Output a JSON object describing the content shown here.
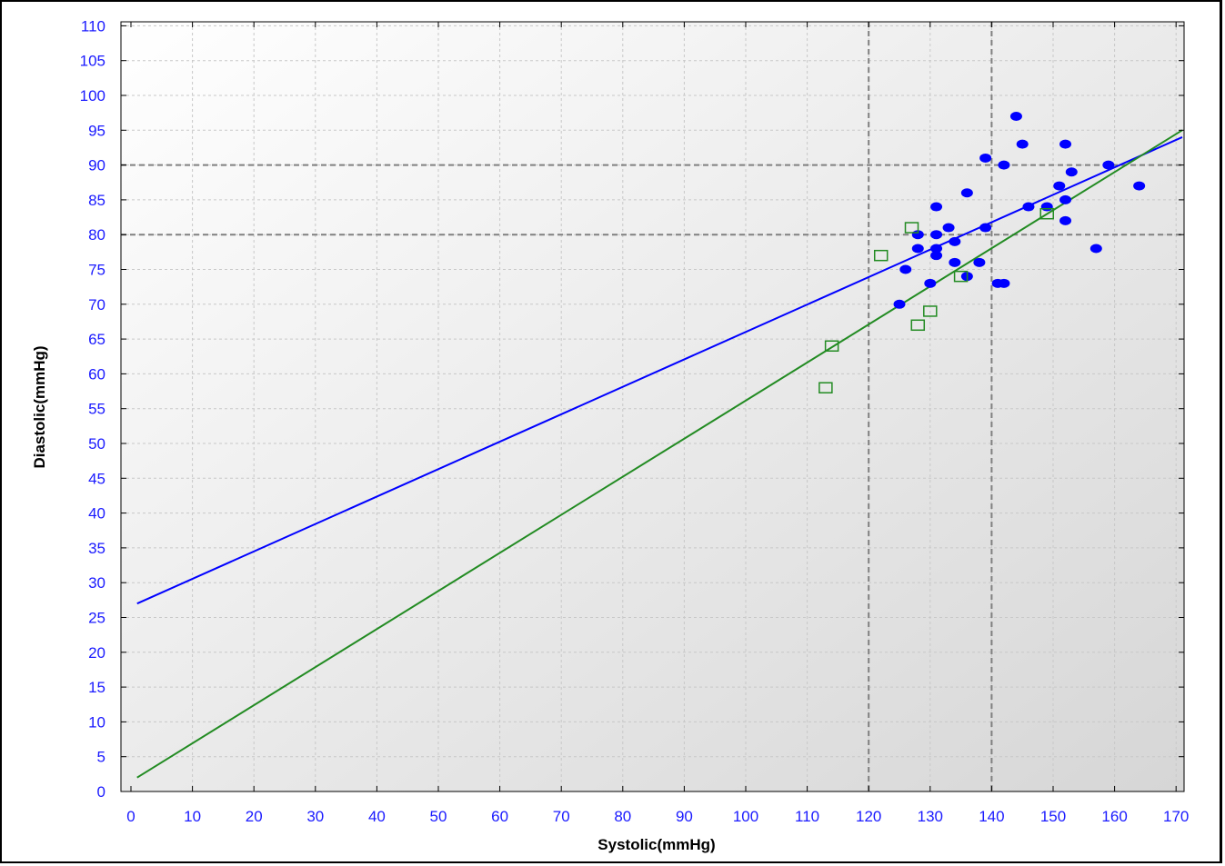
{
  "chart_data": {
    "type": "scatter",
    "title": "",
    "xlabel": "Systolic(mmHg)",
    "ylabel": "Diastolic(mmHg)",
    "xlim": [
      0,
      171
    ],
    "ylim": [
      0,
      110
    ],
    "x_ticks": [
      0,
      10,
      20,
      30,
      40,
      50,
      60,
      70,
      80,
      90,
      100,
      110,
      120,
      130,
      140,
      150,
      160,
      170
    ],
    "y_ticks": [
      0,
      5,
      10,
      15,
      20,
      25,
      30,
      35,
      40,
      45,
      50,
      55,
      60,
      65,
      70,
      75,
      80,
      85,
      90,
      95,
      100,
      105,
      110
    ],
    "grid": true,
    "reference_lines": {
      "x": [
        120,
        140
      ],
      "y": [
        80,
        90
      ],
      "color": "#808080"
    },
    "series": [
      {
        "marker": "filled-circle",
        "color": "#0000ff",
        "points": [
          [
            144,
            97
          ],
          [
            145,
            93
          ],
          [
            152,
            93
          ],
          [
            139,
            91
          ],
          [
            142,
            90
          ],
          [
            159,
            90
          ],
          [
            153,
            89
          ],
          [
            151,
            87
          ],
          [
            164,
            87
          ],
          [
            136,
            86
          ],
          [
            152,
            85
          ],
          [
            131,
            84
          ],
          [
            146,
            84
          ],
          [
            149,
            84
          ],
          [
            133,
            81
          ],
          [
            139,
            81
          ],
          [
            152,
            82
          ],
          [
            128,
            80
          ],
          [
            131,
            80
          ],
          [
            134,
            79
          ],
          [
            128,
            78
          ],
          [
            131,
            78
          ],
          [
            157,
            78
          ],
          [
            131,
            77
          ],
          [
            138,
            76
          ],
          [
            134,
            76
          ],
          [
            126,
            75
          ],
          [
            136,
            74
          ],
          [
            130,
            73
          ],
          [
            141,
            73
          ],
          [
            142,
            73
          ],
          [
            125,
            70
          ]
        ]
      },
      {
        "marker": "open-square",
        "color": "#228b22",
        "points": [
          [
            127,
            81
          ],
          [
            122,
            77
          ],
          [
            149,
            83
          ],
          [
            135,
            74
          ],
          [
            130,
            69
          ],
          [
            128,
            67
          ],
          [
            114,
            64
          ],
          [
            113,
            58
          ]
        ]
      }
    ],
    "trend_lines": [
      {
        "color": "#0000ff",
        "from": [
          1,
          27
        ],
        "to": [
          171,
          94
        ]
      },
      {
        "color": "#228b22",
        "from": [
          1,
          2
        ],
        "to": [
          171,
          95
        ]
      }
    ]
  }
}
